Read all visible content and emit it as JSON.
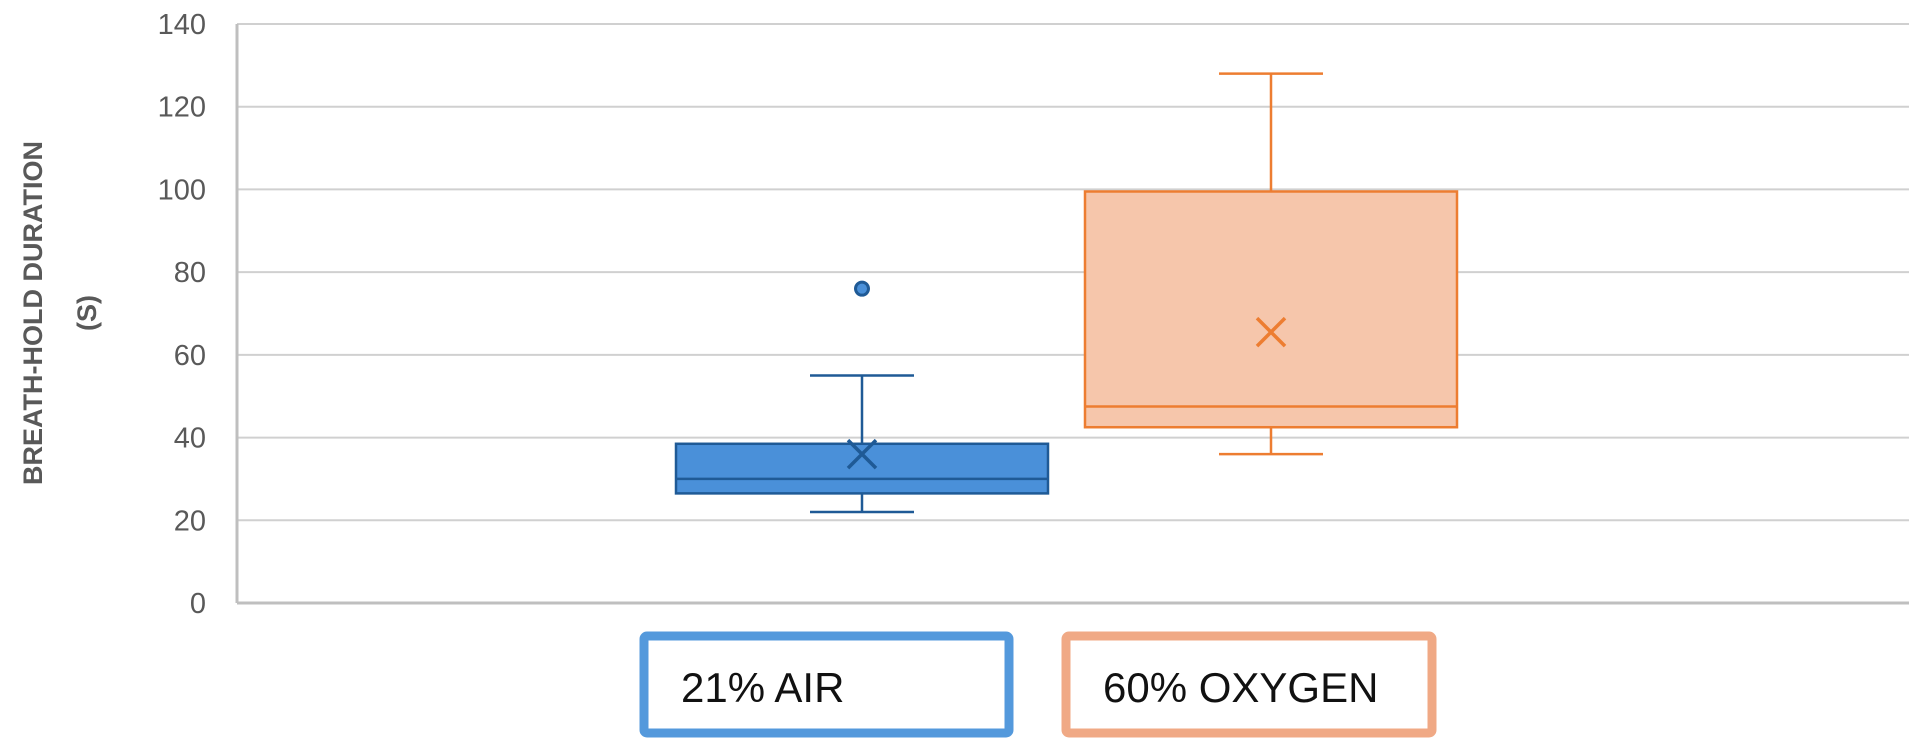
{
  "chart_data": {
    "type": "box",
    "title": "",
    "xlabel": "",
    "ylabel_line1": "BREATH-HOLD DURATION",
    "ylabel_line2": "(S)",
    "ylim": [
      0,
      140
    ],
    "yticks": [
      0,
      20,
      40,
      60,
      80,
      100,
      120,
      140
    ],
    "grid": true,
    "legend_position": "bottom",
    "series": [
      {
        "name": "21% AIR",
        "color": "#4a90d9",
        "fill": "#4a90d9",
        "stroke": "#1f5a96",
        "whisker_low": 22,
        "q1": 26.5,
        "median": 30,
        "q3": 38.5,
        "whisker_high": 55,
        "mean": 36,
        "outliers": [
          76
        ]
      },
      {
        "name": "60% OXYGEN",
        "color": "#ed7d31",
        "fill": "#f6c6ab",
        "stroke": "#ed7d31",
        "whisker_low": 36,
        "q1": 42.5,
        "median": 47.5,
        "q3": 99.5,
        "whisker_high": 128,
        "mean": 65.5,
        "outliers": []
      }
    ],
    "legend": [
      {
        "label": "21% AIR",
        "border": "#5499dc"
      },
      {
        "label": "60% OXYGEN",
        "border": "#f0a985"
      }
    ]
  }
}
